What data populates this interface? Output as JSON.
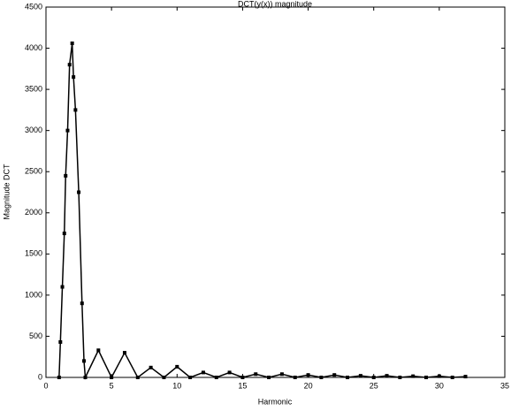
{
  "chart_data": {
    "type": "line",
    "title": "DCT(y(x)) magnitude",
    "xlabel": "Harmonic",
    "ylabel": "Magnitude DCT",
    "x": [
      1,
      1.1,
      1.25,
      1.4,
      1.5,
      1.65,
      1.8,
      2,
      2.1,
      2.25,
      2.5,
      2.75,
      2.9,
      3,
      4,
      5,
      6,
      7,
      8,
      9,
      10,
      11,
      12,
      13,
      14,
      15,
      16,
      17,
      18,
      19,
      20,
      21,
      22,
      23,
      24,
      25,
      26,
      27,
      28,
      29,
      30,
      31,
      32
    ],
    "series": [
      {
        "color": "#000000",
        "values": [
          0,
          430,
          1100,
          1750,
          2450,
          3000,
          3800,
          4060,
          3650,
          3250,
          2250,
          900,
          200,
          0,
          330,
          0,
          300,
          0,
          120,
          0,
          130,
          0,
          60,
          0,
          60,
          0,
          40,
          0,
          40,
          0,
          30,
          0,
          30,
          0,
          20,
          0,
          20,
          0,
          15,
          0,
          15,
          0,
          10
        ]
      }
    ],
    "xlim": [
      0,
      35
    ],
    "xticks": [
      0,
      5,
      10,
      15,
      20,
      25,
      30,
      35
    ],
    "ylim": [
      0,
      4500
    ],
    "yticks": [
      0,
      500,
      1000,
      1500,
      2000,
      2500,
      3000,
      3500,
      4000,
      4500
    ]
  }
}
